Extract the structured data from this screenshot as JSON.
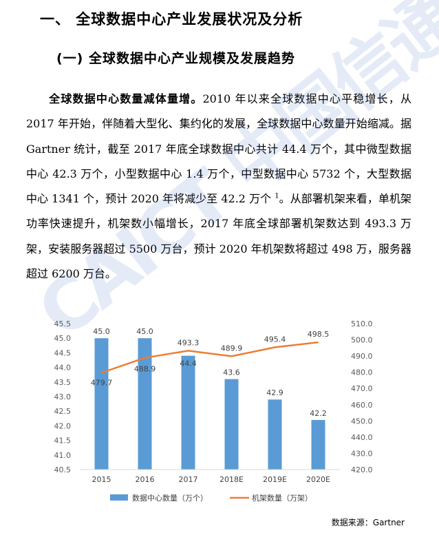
{
  "heading1": "一、 全球数据中心产业发展状况及分析",
  "heading2": "(一) 全球数据中心产业规模及发展趋势",
  "paragraph": {
    "lead": "全球数据中心数量减体量增。",
    "body_a": "2010 年以来全球数据中心平稳增长，从 2017 年开始，伴随着大型化、集约化的发展，全球数据中心数量开始缩减。据 Gartner 统计，截至 2017 年底全球数据中心共计 44.4 万个，其中微型数据中心 42.3 万个，小型数据中心 1.4 万个，中型数据中心 5732 个，大型数据中心 1341 个，预计 2020 年将减少至 42.2 万个",
    "footnote": "1",
    "body_b": "。从部署机架来看，单机架功率快速提升，机架数小幅增长，2017 年底全球部署机架数达到 493.3 万架，安装服务器超过 5500 万台，预计 2020 年机架数将超过 498 万，服务器超过 6200 万台。"
  },
  "watermark": "CAICT 中国信通院",
  "source": "数据来源：Gartner",
  "chart_data": {
    "type": "bar",
    "categories": [
      "2015",
      "2016",
      "2017",
      "2018E",
      "2019E",
      "2020E"
    ],
    "series": [
      {
        "name": "数据中心数量（万个）",
        "type": "bar",
        "axis": "left",
        "color": "#5b9bd5",
        "values": [
          45.0,
          45.0,
          44.4,
          43.6,
          42.9,
          42.2
        ],
        "labels": [
          "45.0",
          "45.0",
          "44.4",
          "43.6",
          "42.9",
          "42.2"
        ]
      },
      {
        "name": "机架数量（万架）",
        "type": "line",
        "axis": "right",
        "color": "#ed7d31",
        "values": [
          479.7,
          488.9,
          493.3,
          489.9,
          495.4,
          498.5
        ],
        "labels": [
          "479.7",
          "488.9",
          "493.3",
          "489.9",
          "495.4",
          "498.5"
        ]
      }
    ],
    "y_left": {
      "min": 40.5,
      "max": 45.5,
      "ticks": [
        "40.5",
        "41.0",
        "41.5",
        "42.0",
        "42.5",
        "43.0",
        "43.5",
        "44.0",
        "44.5",
        "45.0",
        "45.5"
      ]
    },
    "y_right": {
      "min": 420,
      "max": 510,
      "ticks": [
        "420.0",
        "430.0",
        "440.0",
        "450.0",
        "460.0",
        "470.0",
        "480.0",
        "490.0",
        "500.0",
        "510.0"
      ]
    },
    "grid": false,
    "legend_position": "bottom"
  }
}
